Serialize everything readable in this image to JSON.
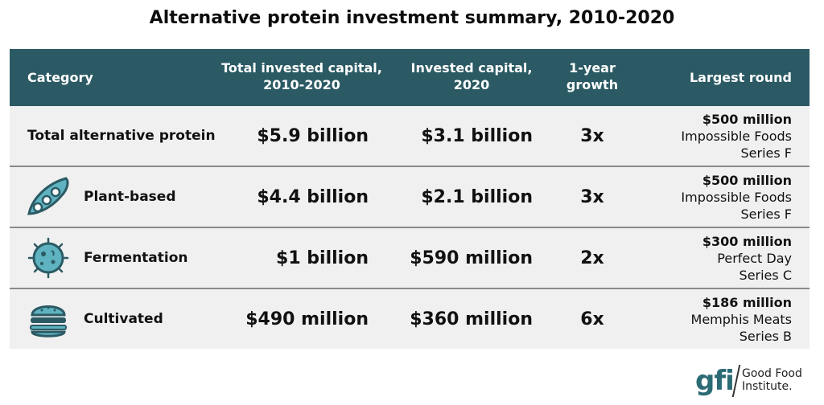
{
  "title": "Alternative protein investment summary, 2010-2020",
  "colors": {
    "header_bg": "#2b5a64",
    "row_bg": "#f0f0f1",
    "icon": "#2b5a64",
    "icon_fill": "#5fb3c0"
  },
  "headers": {
    "category": "Category",
    "total_line1": "Total invested capital,",
    "total_line2": "2010-2020",
    "invested_line1": "Invested capital,",
    "invested_line2": "2020",
    "growth_line1": "1-year",
    "growth_line2": "growth",
    "largest": "Largest round"
  },
  "rows": [
    {
      "category": "Total alternative protein",
      "icon": "",
      "total": "$5.9 billion",
      "invested_2020": "$3.1 billion",
      "growth": "3x",
      "round_amount": "$500 million",
      "round_company": "Impossible Foods",
      "round_series": "Series F"
    },
    {
      "category": "Plant-based",
      "icon": "pea-pod-icon",
      "total": "$4.4 billion",
      "invested_2020": "$2.1 billion",
      "growth": "3x",
      "round_amount": "$500 million",
      "round_company": "Impossible Foods",
      "round_series": "Series F"
    },
    {
      "category": "Fermentation",
      "icon": "microbe-icon",
      "total": "$1 billion",
      "invested_2020": "$590 million",
      "growth": "2x",
      "round_amount": "$300 million",
      "round_company": "Perfect Day",
      "round_series": "Series C"
    },
    {
      "category": "Cultivated",
      "icon": "burger-icon",
      "total": "$490 million",
      "invested_2020": "$360 million",
      "growth": "6x",
      "round_amount": "$186 million",
      "round_company": "Memphis Meats",
      "round_series": "Series B"
    }
  ],
  "logo": {
    "mark": "gfi",
    "line1": "Good Food",
    "line2": "Institute."
  }
}
